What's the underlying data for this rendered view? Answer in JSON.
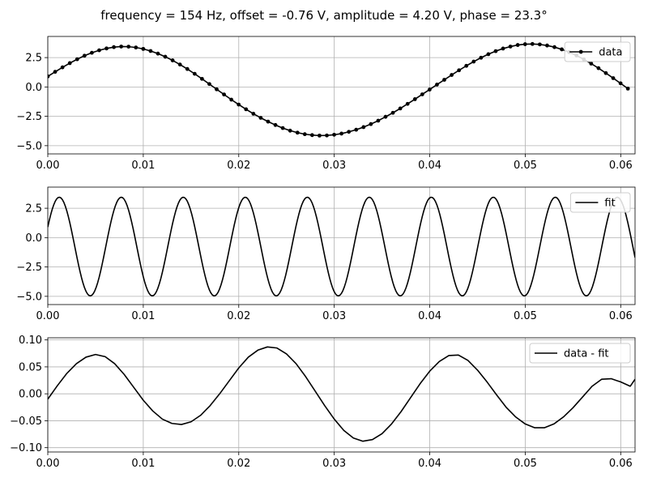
{
  "figure": {
    "suptitle": "frequency = 154 Hz, offset = -0.76 V, amplitude = 4.20 V, phase = 23.3°"
  },
  "chart_data": [
    {
      "type": "line",
      "function": {
        "frequency_hz": 154,
        "offset_v": -0.76,
        "amplitude_v": 4.2,
        "phase_deg": 23.3
      },
      "xlim": [
        0,
        0.0615
      ],
      "ylim": [
        -5.7,
        4.3
      ],
      "xticks": [
        0.0,
        0.01,
        0.02,
        0.03,
        0.04,
        0.05,
        0.06
      ],
      "xtick_labels": [
        "0.00",
        "0.01",
        "0.02",
        "0.03",
        "0.04",
        "0.05",
        "0.06"
      ],
      "yticks": [
        -5.0,
        -2.5,
        0.0,
        2.5
      ],
      "ytick_labels": [
        "−5.0",
        "−2.5",
        "0.0",
        "2.5"
      ],
      "grid": true,
      "legend": "top-right",
      "series": [
        {
          "name": "data",
          "color": "#000000",
          "marker": "circle",
          "x_start": 0,
          "x_step": 0.000769,
          "y": [
            0.9,
            1.29,
            1.67,
            2.03,
            2.36,
            2.66,
            2.91,
            3.12,
            3.28,
            3.39,
            3.44,
            3.43,
            3.36,
            3.24,
            3.06,
            2.84,
            2.57,
            2.26,
            1.91,
            1.53,
            1.12,
            0.69,
            0.25,
            -0.2,
            -0.64,
            -1.08,
            -1.5,
            -1.9,
            -2.28,
            -2.63,
            -2.95,
            -3.24,
            -3.5,
            -3.72,
            -3.89,
            -4.02,
            -4.1,
            -4.14,
            -4.13,
            -4.07,
            -3.97,
            -3.82,
            -3.64,
            -3.42,
            -3.16,
            -2.87,
            -2.54,
            -2.2,
            -1.83,
            -1.44,
            -1.04,
            -0.63,
            -0.22,
            0.2,
            0.61,
            1.02,
            1.42,
            1.8,
            2.16,
            2.49,
            2.79,
            3.05,
            3.27,
            3.44,
            3.57,
            3.64,
            3.66,
            3.62,
            3.53,
            3.39,
            3.2,
            2.96,
            2.68,
            2.35,
            1.99,
            1.6,
            1.18,
            0.75,
            0.31,
            -0.14
          ]
        }
      ]
    },
    {
      "type": "line",
      "xlim": [
        0,
        0.0615
      ],
      "ylim": [
        -5.7,
        4.3
      ],
      "xticks": [
        0.0,
        0.01,
        0.02,
        0.03,
        0.04,
        0.05,
        0.06
      ],
      "xtick_labels": [
        "0.00",
        "0.01",
        "0.02",
        "0.03",
        "0.04",
        "0.05",
        "0.06"
      ],
      "yticks": [
        -5.0,
        -2.5,
        0.0,
        2.5
      ],
      "ytick_labels": [
        "−5.0",
        "−2.5",
        "0.0",
        "2.5"
      ],
      "grid": true,
      "legend": "top-right",
      "series": [
        {
          "name": "fit",
          "color": "#000000",
          "marker": "none",
          "model": "offset + amplitude * sin(2*pi*frequency*x + phase)"
        }
      ]
    },
    {
      "type": "line",
      "xlim": [
        0,
        0.0615
      ],
      "ylim": [
        -0.108,
        0.104
      ],
      "xticks": [
        0.0,
        0.01,
        0.02,
        0.03,
        0.04,
        0.05,
        0.06
      ],
      "xtick_labels": [
        "0.00",
        "0.01",
        "0.02",
        "0.03",
        "0.04",
        "0.05",
        "0.06"
      ],
      "yticks": [
        -0.1,
        -0.05,
        0.0,
        0.05,
        0.1
      ],
      "ytick_labels": [
        "−0.10",
        "−0.05",
        "0.00",
        "0.05",
        "0.10"
      ],
      "grid": true,
      "legend": "top-right",
      "series": [
        {
          "name": "data - fit",
          "color": "#000000",
          "marker": "none",
          "x": [
            0,
            0.001,
            0.002,
            0.003,
            0.004,
            0.005,
            0.006,
            0.007,
            0.008,
            0.009,
            0.01,
            0.011,
            0.012,
            0.013,
            0.014,
            0.015,
            0.016,
            0.017,
            0.018,
            0.019,
            0.02,
            0.021,
            0.022,
            0.023,
            0.024,
            0.025,
            0.026,
            0.027,
            0.028,
            0.029,
            0.03,
            0.031,
            0.032,
            0.033,
            0.034,
            0.035,
            0.036,
            0.037,
            0.038,
            0.039,
            0.04,
            0.041,
            0.042,
            0.043,
            0.044,
            0.045,
            0.046,
            0.047,
            0.048,
            0.049,
            0.05,
            0.051,
            0.052,
            0.053,
            0.054,
            0.055,
            0.056,
            0.057,
            0.058,
            0.059,
            0.06,
            0.061,
            0.0615
          ],
          "y": [
            -0.01,
            0.015,
            0.038,
            0.056,
            0.068,
            0.073,
            0.069,
            0.056,
            0.036,
            0.012,
            -0.012,
            -0.032,
            -0.047,
            -0.055,
            -0.057,
            -0.052,
            -0.04,
            -0.022,
            0.0,
            0.024,
            0.048,
            0.068,
            0.081,
            0.087,
            0.085,
            0.074,
            0.056,
            0.032,
            0.005,
            -0.022,
            -0.047,
            -0.068,
            -0.082,
            -0.088,
            -0.085,
            -0.074,
            -0.056,
            -0.033,
            -0.007,
            0.019,
            0.042,
            0.06,
            0.071,
            0.072,
            0.062,
            0.044,
            0.022,
            -0.002,
            -0.025,
            -0.043,
            -0.056,
            -0.063,
            -0.063,
            -0.056,
            -0.043,
            -0.026,
            -0.006,
            0.014,
            0.027,
            0.028,
            0.022,
            0.014,
            0.027
          ]
        }
      ]
    }
  ]
}
